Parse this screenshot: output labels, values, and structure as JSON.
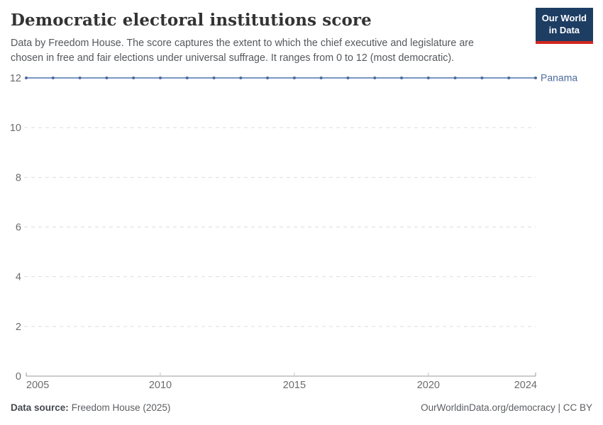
{
  "header": {
    "title": "Democratic electoral institutions score",
    "subtitle": "Data by Freedom House. The score captures the extent to which the chief executive and legislature are chosen in free and fair elections under universal suffrage. It ranges from 0 to 12 (most democratic).",
    "logo_line1": "Our World",
    "logo_line2": "in Data"
  },
  "chart_data": {
    "type": "line",
    "title": "Democratic electoral institutions score",
    "x": [
      2005,
      2006,
      2007,
      2008,
      2009,
      2010,
      2011,
      2012,
      2013,
      2014,
      2015,
      2016,
      2017,
      2018,
      2019,
      2020,
      2021,
      2022,
      2023,
      2024
    ],
    "series": [
      {
        "name": "Panama",
        "values": [
          12,
          12,
          12,
          12,
          12,
          12,
          12,
          12,
          12,
          12,
          12,
          12,
          12,
          12,
          12,
          12,
          12,
          12,
          12,
          12
        ]
      }
    ],
    "xlabel": "",
    "ylabel": "",
    "xlim": [
      2005,
      2024
    ],
    "ylim": [
      0,
      12
    ],
    "xticks": [
      2005,
      2010,
      2015,
      2020,
      2024
    ],
    "yticks": [
      0,
      2,
      4,
      6,
      8,
      10,
      12
    ],
    "grid": "horizontal-dashed",
    "legend_position": "end-of-line-label",
    "marker": "circle"
  },
  "colors": {
    "series": "#4C6A9C",
    "series_line": "#6787B7",
    "grid": "#dddddd",
    "axis": "#9a9a9a",
    "tick_minor": "#c4c4c4",
    "tick_label": "#6b6b6b",
    "logo_bg": "#1d3d63",
    "logo_accent": "#d2261f"
  },
  "footer": {
    "source_label": "Data source:",
    "source_value": "Freedom House (2025)",
    "right_text": "OurWorldinData.org/democracy | CC BY"
  }
}
